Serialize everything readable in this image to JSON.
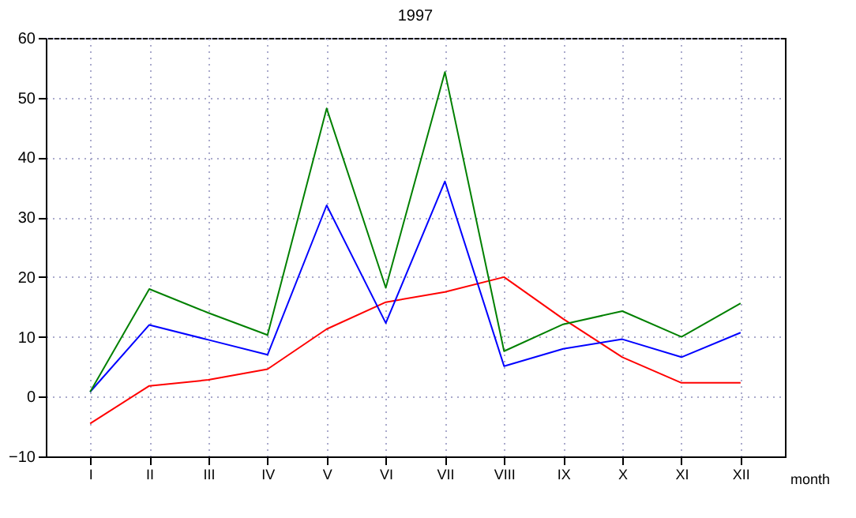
{
  "chart_data": {
    "type": "line",
    "title": "1997",
    "xlabel": "month",
    "categories": [
      "I",
      "II",
      "III",
      "IV",
      "V",
      "VI",
      "VII",
      "VIII",
      "IX",
      "X",
      "XI",
      "XII"
    ],
    "series": [
      {
        "color": "#ff0000",
        "values": [
          -4.5,
          1.8,
          2.8,
          4.6,
          11.3,
          15.8,
          17.5,
          20,
          13,
          6.6,
          2.3,
          2.3
        ]
      },
      {
        "color": "#0000ff",
        "values": [
          0.8,
          12,
          9.5,
          7,
          32,
          12.3,
          36,
          5.1,
          8,
          9.6,
          6.6,
          10.7
        ]
      },
      {
        "color": "#008000",
        "values": [
          0.8,
          18,
          14,
          10.3,
          48.2,
          18.2,
          54.3,
          7.6,
          12.1,
          14.3,
          10,
          15.6
        ]
      }
    ],
    "ylim": [
      -10,
      60
    ],
    "yticks": [
      -10,
      0,
      10,
      20,
      30,
      40,
      50,
      60
    ],
    "grid": true,
    "marker": "none",
    "line_style": "solid"
  }
}
